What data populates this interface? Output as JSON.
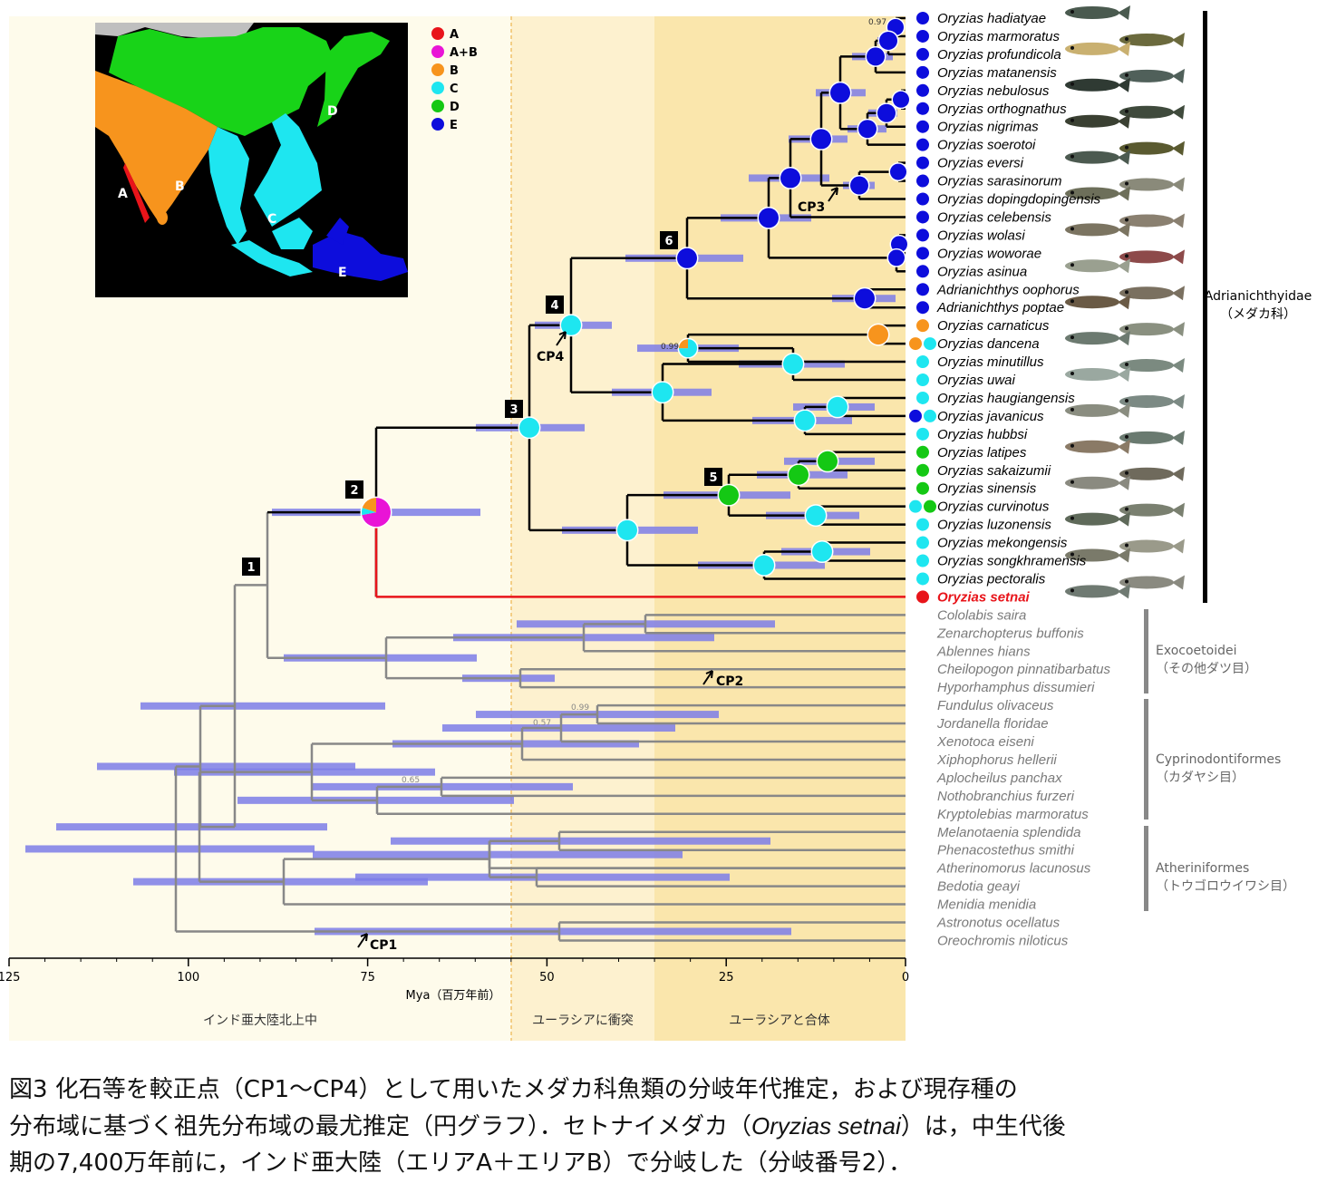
{
  "legend": [
    {
      "label": "A",
      "color": "#e8141a"
    },
    {
      "label": "A+B",
      "color": "#e914d6"
    },
    {
      "label": "B",
      "color": "#f7941d"
    },
    {
      "label": "C",
      "color": "#1ee6f0"
    },
    {
      "label": "D",
      "color": "#14c814"
    },
    {
      "label": "E",
      "color": "#0d0ddc"
    }
  ],
  "map_labels": [
    "A",
    "B",
    "C",
    "D",
    "E"
  ],
  "axis": {
    "ticks": [
      "125",
      "100",
      "75",
      "50",
      "25",
      "0"
    ],
    "label": "Mya（百万年前）"
  },
  "periods": [
    "インド亜大陸北上中",
    "ユーラシアに衝突",
    "ユーラシアと合体"
  ],
  "node_labels": [
    "1",
    "2",
    "3",
    "4",
    "5",
    "6"
  ],
  "calibration_points": [
    "CP1",
    "CP2",
    "CP3",
    "CP4"
  ],
  "support_values": [
    "0.97",
    "0.99",
    "0.99",
    "0.57",
    "0.65"
  ],
  "species": [
    {
      "name": "Oryzias hadiatyae",
      "area": "E"
    },
    {
      "name": "Oryzias marmoratus",
      "area": "E"
    },
    {
      "name": "Oryzias profundicola",
      "area": "E"
    },
    {
      "name": "Oryzias matanensis",
      "area": "E"
    },
    {
      "name": "Oryzias nebulosus",
      "area": "E"
    },
    {
      "name": "Oryzias orthognathus",
      "area": "E"
    },
    {
      "name": "Oryzias nigrimas",
      "area": "E"
    },
    {
      "name": "Oryzias soerotoi",
      "area": "E"
    },
    {
      "name": "Oryzias eversi",
      "area": "E"
    },
    {
      "name": "Oryzias sarasinorum",
      "area": "E"
    },
    {
      "name": "Oryzias dopingdopingensis",
      "area": "E"
    },
    {
      "name": "Oryzias celebensis",
      "area": "E"
    },
    {
      "name": "Oryzias wolasi",
      "area": "E"
    },
    {
      "name": "Oryzias woworae",
      "area": "E"
    },
    {
      "name": "Oryzias asinua",
      "area": "E"
    },
    {
      "name": "Adrianichthys oophorus",
      "area": "E"
    },
    {
      "name": "Adrianichthys poptae",
      "area": "E"
    },
    {
      "name": "Oryzias carnaticus",
      "area": "B"
    },
    {
      "name": "Oryzias dancena",
      "area": "B+C"
    },
    {
      "name": "Oryzias minutillus",
      "area": "C"
    },
    {
      "name": "Oryzias uwai",
      "area": "C"
    },
    {
      "name": "Oryzias haugiangensis",
      "area": "C"
    },
    {
      "name": "Oryzias javanicus",
      "area": "E+C"
    },
    {
      "name": "Oryzias hubbsi",
      "area": "C"
    },
    {
      "name": "Oryzias latipes",
      "area": "D"
    },
    {
      "name": "Oryzias sakaizumii",
      "area": "D"
    },
    {
      "name": "Oryzias sinensis",
      "area": "D"
    },
    {
      "name": "Oryzias curvinotus",
      "area": "C+D"
    },
    {
      "name": "Oryzias luzonensis",
      "area": "C"
    },
    {
      "name": "Oryzias mekongensis",
      "area": "C"
    },
    {
      "name": "Oryzias songkhramensis",
      "area": "C"
    },
    {
      "name": "Oryzias pectoralis",
      "area": "C"
    },
    {
      "name": "Oryzias setnai",
      "area": "A"
    },
    {
      "name": "Cololabis saira"
    },
    {
      "name": "Zenarchopterus buffonis"
    },
    {
      "name": "Ablennes hians"
    },
    {
      "name": "Cheilopogon pinnatibarbatus"
    },
    {
      "name": "Hyporhamphus dissumieri"
    },
    {
      "name": "Fundulus olivaceus"
    },
    {
      "name": "Jordanella floridae"
    },
    {
      "name": "Xenotoca eiseni"
    },
    {
      "name": "Xiphophorus hellerii"
    },
    {
      "name": "Aplocheilus panchax"
    },
    {
      "name": "Nothobranchius furzeri"
    },
    {
      "name": "Kryptolebias marmoratus"
    },
    {
      "name": "Melanotaenia splendida"
    },
    {
      "name": "Phenacostethus smithi"
    },
    {
      "name": "Atherinomorus lacunosus"
    },
    {
      "name": "Bedotia geayi"
    },
    {
      "name": "Menidia menidia"
    },
    {
      "name": "Astronotus ocellatus"
    },
    {
      "name": "Oreochromis niloticus"
    }
  ],
  "groups": [
    {
      "name": "Adrianichthyidae",
      "jp": "（メダカ科）"
    },
    {
      "name": "Exocoetoidei",
      "jp": "（その他ダツ目）"
    },
    {
      "name": "Cyprinodontiformes",
      "jp": "（カダヤシ目）"
    },
    {
      "name": "Atheriniformes",
      "jp": "（トウゴロウイワシ目）"
    }
  ],
  "caption": {
    "line1": "図3 化石等を較正点（CP1～CP4）として用いたメダカ科魚類の分岐年代推定，および現存種の",
    "line2a": "分布域に基づく祖先分布域の最尤推定（円グラフ）．セトナイメダカ（",
    "line2b": "Oryzias setnai",
    "line2c": "）は，中生代後",
    "line3": "期の7,400万年前に，インド亜大陸（エリアA＋エリアB）で分岐した（分岐番号2）．"
  }
}
